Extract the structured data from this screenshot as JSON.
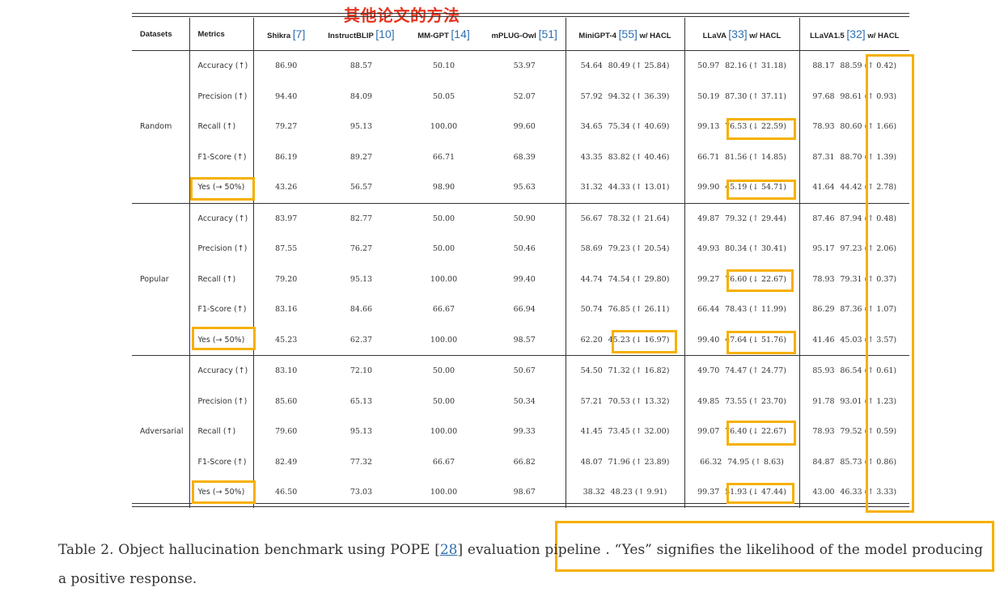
{
  "annotation_text": "其他论文的方法",
  "headers": {
    "datasets": "Datasets",
    "metrics": "Metrics",
    "shikra": "Shikra",
    "shikra_ref": "[7]",
    "instructblip": "InstructBLIP",
    "instructblip_ref": "[10]",
    "mmgpt": "MM-GPT",
    "mmgpt_ref": "[14]",
    "mplug": "mPLUG-Owl",
    "mplug_ref": "[51]",
    "minigpt": "MiniGPT-4",
    "minigpt_ref": "[55]",
    "minigpt_suffix": "w/ HACL",
    "llava": "LLaVA",
    "llava_ref": "[33]",
    "llava_suffix": "w/ HACL",
    "llava15": "LLaVA1.5",
    "llava15_ref": "[32]",
    "llava15_suffix": "w/ HACL"
  },
  "groups": [
    {
      "dataset": "Random",
      "rows": [
        {
          "metric": "Accuracy (↑)",
          "shikra": "86.90",
          "instructblip": "88.57",
          "mmgpt": "50.10",
          "mplug": "53.97",
          "minigpt": "54.64",
          "minigpt_hacl": "80.49 (↑ 25.84)",
          "llava": "50.97",
          "llava_hacl": "82.16 (↑ 31.18)",
          "llava15": "88.17",
          "llava15_hacl": "88.59 (↑ 0.42)"
        },
        {
          "metric": "Precision (↑)",
          "shikra": "94.40",
          "instructblip": "84.09",
          "mmgpt": "50.05",
          "mplug": "52.07",
          "minigpt": "57.92",
          "minigpt_hacl": "94.32 (↑ 36.39)",
          "llava": "50.19",
          "llava_hacl": "87.30 (↑ 37.11)",
          "llava15": "97.68",
          "llava15_hacl": "98.61 (↑ 0.93)"
        },
        {
          "metric": "Recall (↑)",
          "shikra": "79.27",
          "instructblip": "95.13",
          "mmgpt": "100.00",
          "mplug": "99.60",
          "minigpt": "34.65",
          "minigpt_hacl": "75.34 (↑ 40.69)",
          "llava": "99.13",
          "llava_hacl": "76.53 (↓ 22.59)",
          "llava15": "78.93",
          "llava15_hacl": "80.60 (↑ 1.66)"
        },
        {
          "metric": "F1-Score (↑)",
          "shikra": "86.19",
          "instructblip": "89.27",
          "mmgpt": "66.71",
          "mplug": "68.39",
          "minigpt": "43.35",
          "minigpt_hacl": "83.82 (↑ 40.46)",
          "llava": "66.71",
          "llava_hacl": "81.56 (↑ 14.85)",
          "llava15": "87.31",
          "llava15_hacl": "88.70 (↑ 1.39)"
        },
        {
          "metric": "Yes (→ 50%)",
          "shikra": "43.26",
          "instructblip": "56.57",
          "mmgpt": "98.90",
          "mplug": "95.63",
          "minigpt": "31.32",
          "minigpt_hacl": "44.33 (↑ 13.01)",
          "llava": "99.90",
          "llava_hacl": "45.19 (↓ 54.71)",
          "llava15": "41.64",
          "llava15_hacl": "44.42 (↑ 2.78)"
        }
      ]
    },
    {
      "dataset": "Popular",
      "rows": [
        {
          "metric": "Accuracy (↑)",
          "shikra": "83.97",
          "instructblip": "82.77",
          "mmgpt": "50.00",
          "mplug": "50.90",
          "minigpt": "56.67",
          "minigpt_hacl": "78.32 (↑ 21.64)",
          "llava": "49.87",
          "llava_hacl": "79.32 (↑ 29.44)",
          "llava15": "87.46",
          "llava15_hacl": "87.94 (↑ 0.48)"
        },
        {
          "metric": "Precision (↑)",
          "shikra": "87.55",
          "instructblip": "76.27",
          "mmgpt": "50.00",
          "mplug": "50.46",
          "minigpt": "58.69",
          "minigpt_hacl": "79.23 (↑ 20.54)",
          "llava": "49.93",
          "llava_hacl": "80.34 (↑ 30.41)",
          "llava15": "95.17",
          "llava15_hacl": "97.23 (↑ 2.06)"
        },
        {
          "metric": "Recall (↑)",
          "shikra": "79.20",
          "instructblip": "95.13",
          "mmgpt": "100.00",
          "mplug": "99.40",
          "minigpt": "44.74",
          "minigpt_hacl": "74.54 (↑ 29.80)",
          "llava": "99.27",
          "llava_hacl": "76.60 (↓ 22.67)",
          "llava15": "78.93",
          "llava15_hacl": "79.31 (↑ 0.37)"
        },
        {
          "metric": "F1-Score (↑)",
          "shikra": "83.16",
          "instructblip": "84.66",
          "mmgpt": "66.67",
          "mplug": "66.94",
          "minigpt": "50.74",
          "minigpt_hacl": "76.85 (↑ 26.11)",
          "llava": "66.44",
          "llava_hacl": "78.43 (↑ 11.99)",
          "llava15": "86.29",
          "llava15_hacl": "87.36 (↑ 1.07)"
        },
        {
          "metric": "Yes (→ 50%)",
          "shikra": "45.23",
          "instructblip": "62.37",
          "mmgpt": "100.00",
          "mplug": "98.57",
          "minigpt": "62.20",
          "minigpt_hacl": "45.23 (↓ 16.97)",
          "llava": "99.40",
          "llava_hacl": "47.64 (↓ 51.76)",
          "llava15": "41.46",
          "llava15_hacl": "45.03 (↑ 3.57)"
        }
      ]
    },
    {
      "dataset": "Adversarial",
      "rows": [
        {
          "metric": "Accuracy (↑)",
          "shikra": "83.10",
          "instructblip": "72.10",
          "mmgpt": "50.00",
          "mplug": "50.67",
          "minigpt": "54.50",
          "minigpt_hacl": "71.32 (↑ 16.82)",
          "llava": "49.70",
          "llava_hacl": "74.47 (↑ 24.77)",
          "llava15": "85.93",
          "llava15_hacl": "86.54 (↑ 0.61)"
        },
        {
          "metric": "Precision (↑)",
          "shikra": "85.60",
          "instructblip": "65.13",
          "mmgpt": "50.00",
          "mplug": "50.34",
          "minigpt": "57.21",
          "minigpt_hacl": "70.53 (↑ 13.32)",
          "llava": "49.85",
          "llava_hacl": "73.55 (↑ 23.70)",
          "llava15": "91.78",
          "llava15_hacl": "93.01 (↑ 1.23)"
        },
        {
          "metric": "Recall (↑)",
          "shikra": "79.60",
          "instructblip": "95.13",
          "mmgpt": "100.00",
          "mplug": "99.33",
          "minigpt": "41.45",
          "minigpt_hacl": "73.45 (↑ 32.00)",
          "llava": "99.07",
          "llava_hacl": "76.40 (↓ 22.67)",
          "llava15": "78.93",
          "llava15_hacl": "79.52 (↑ 0.59)"
        },
        {
          "metric": "F1-Score (↑)",
          "shikra": "82.49",
          "instructblip": "77.32",
          "mmgpt": "66.67",
          "mplug": "66.82",
          "minigpt": "48.07",
          "minigpt_hacl": "71.96 (↑ 23.89)",
          "llava": "66.32",
          "llava_hacl": "74.95 (↑ 8.63)",
          "llava15": "84.87",
          "llava15_hacl": "85.73 (↑ 0.86)"
        },
        {
          "metric": "Yes (→ 50%)",
          "shikra": "46.50",
          "instructblip": "73.03",
          "mmgpt": "100.00",
          "mplug": "98.67",
          "minigpt": "38.32",
          "minigpt_hacl": "48.23 (↑ 9.91)",
          "llava": "99.37",
          "llava_hacl": "51.93 (↓ 47.44)",
          "llava15": "43.00",
          "llava15_hacl": "46.33 (↑ 3.33)"
        }
      ]
    }
  ],
  "caption": {
    "prefix": "Table 2. Object hallucination benchmark using POPE [",
    "ref": "28",
    "suffix": "] evaluation pipeline . “Yes” signifies the likelihood of the model producing a positive response."
  },
  "colors": {
    "highlight": "#f6b000",
    "annotation": "#e8321c",
    "reference": "#2f6fb0"
  }
}
